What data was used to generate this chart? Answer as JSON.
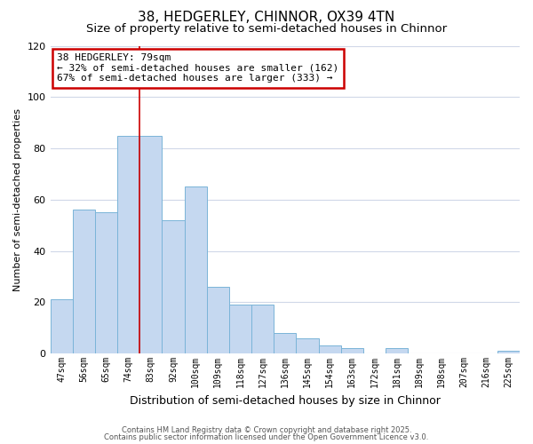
{
  "title": "38, HEDGERLEY, CHINNOR, OX39 4TN",
  "subtitle": "Size of property relative to semi-detached houses in Chinnor",
  "xlabel": "Distribution of semi-detached houses by size in Chinnor",
  "ylabel": "Number of semi-detached properties",
  "categories": [
    "47sqm",
    "56sqm",
    "65sqm",
    "74sqm",
    "83sqm",
    "92sqm",
    "100sqm",
    "109sqm",
    "118sqm",
    "127sqm",
    "136sqm",
    "145sqm",
    "154sqm",
    "163sqm",
    "172sqm",
    "181sqm",
    "189sqm",
    "198sqm",
    "207sqm",
    "216sqm",
    "225sqm"
  ],
  "values": [
    21,
    56,
    55,
    85,
    85,
    52,
    65,
    26,
    19,
    19,
    8,
    6,
    3,
    2,
    0,
    2,
    0,
    0,
    0,
    0,
    1
  ],
  "bar_color": "#c5d8f0",
  "bar_edge_color": "#7ab4d8",
  "highlight_line_color": "#cc0000",
  "annotation_title": "38 HEDGERLEY: 79sqm",
  "annotation_line1": "← 32% of semi-detached houses are smaller (162)",
  "annotation_line2": "67% of semi-detached houses are larger (333) →",
  "annotation_box_color": "#cc0000",
  "ylim": [
    0,
    120
  ],
  "yticks": [
    0,
    20,
    40,
    60,
    80,
    100,
    120
  ],
  "title_fontsize": 11,
  "subtitle_fontsize": 9.5,
  "xlabel_fontsize": 9,
  "ylabel_fontsize": 8,
  "ann_fontsize": 8,
  "footer1": "Contains HM Land Registry data © Crown copyright and database right 2025.",
  "footer2": "Contains public sector information licensed under the Open Government Licence v3.0.",
  "bg_color": "#ffffff",
  "grid_color": "#d0d8e8"
}
